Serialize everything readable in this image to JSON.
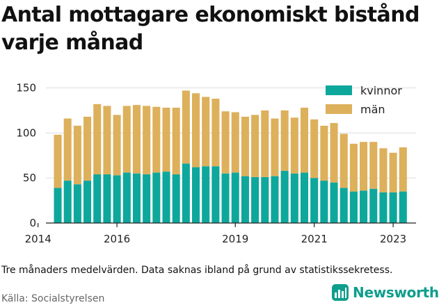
{
  "title": "Antal mottagare ekonomiskt bistånd varje månad",
  "note": "Tre månaders medelvärden. Data saknas ibland på grund av statistikssekretess.",
  "source": "Källa: Socialstyrelsen",
  "brand": {
    "name": "Newsworthy",
    "color": "#0f9e8c",
    "icon": "bar-chart-logo-icon"
  },
  "chart_data": {
    "type": "bar",
    "stacked": true,
    "x": [
      2014.5,
      2014.75,
      2015.0,
      2015.25,
      2015.5,
      2015.75,
      2016.0,
      2016.25,
      2016.5,
      2016.75,
      2017.0,
      2017.25,
      2017.5,
      2017.75,
      2018.0,
      2018.25,
      2018.5,
      2018.75,
      2019.0,
      2019.25,
      2019.5,
      2019.75,
      2020.0,
      2020.25,
      2020.5,
      2020.75,
      2021.0,
      2021.25,
      2021.5,
      2021.75,
      2022.0,
      2022.25,
      2022.5,
      2022.75,
      2023.0,
      2023.25
    ],
    "series": [
      {
        "name": "kvinnor",
        "color": "#0ea79c",
        "values": [
          39,
          47,
          43,
          47,
          54,
          54,
          53,
          56,
          55,
          54,
          56,
          57,
          54,
          66,
          62,
          63,
          63,
          55,
          56,
          52,
          51,
          51,
          52,
          58,
          55,
          56,
          50,
          47,
          45,
          39,
          35,
          36,
          38,
          34,
          34,
          35
        ]
      },
      {
        "name": "män",
        "color": "#ddb05c",
        "values": [
          59,
          69,
          65,
          71,
          78,
          76,
          67,
          74,
          76,
          76,
          73,
          71,
          74,
          81,
          82,
          77,
          75,
          69,
          67,
          66,
          69,
          74,
          64,
          67,
          62,
          72,
          65,
          61,
          66,
          60,
          53,
          54,
          52,
          49,
          44,
          49
        ]
      }
    ],
    "xticks": [
      2014,
      2016,
      2019,
      2021,
      2023
    ],
    "xlim": [
      2014.2,
      2023.58
    ],
    "yticks": [
      0,
      50,
      100,
      150
    ],
    "ylim": [
      0,
      155
    ],
    "grid": "horizontal",
    "legend": "top-right"
  }
}
